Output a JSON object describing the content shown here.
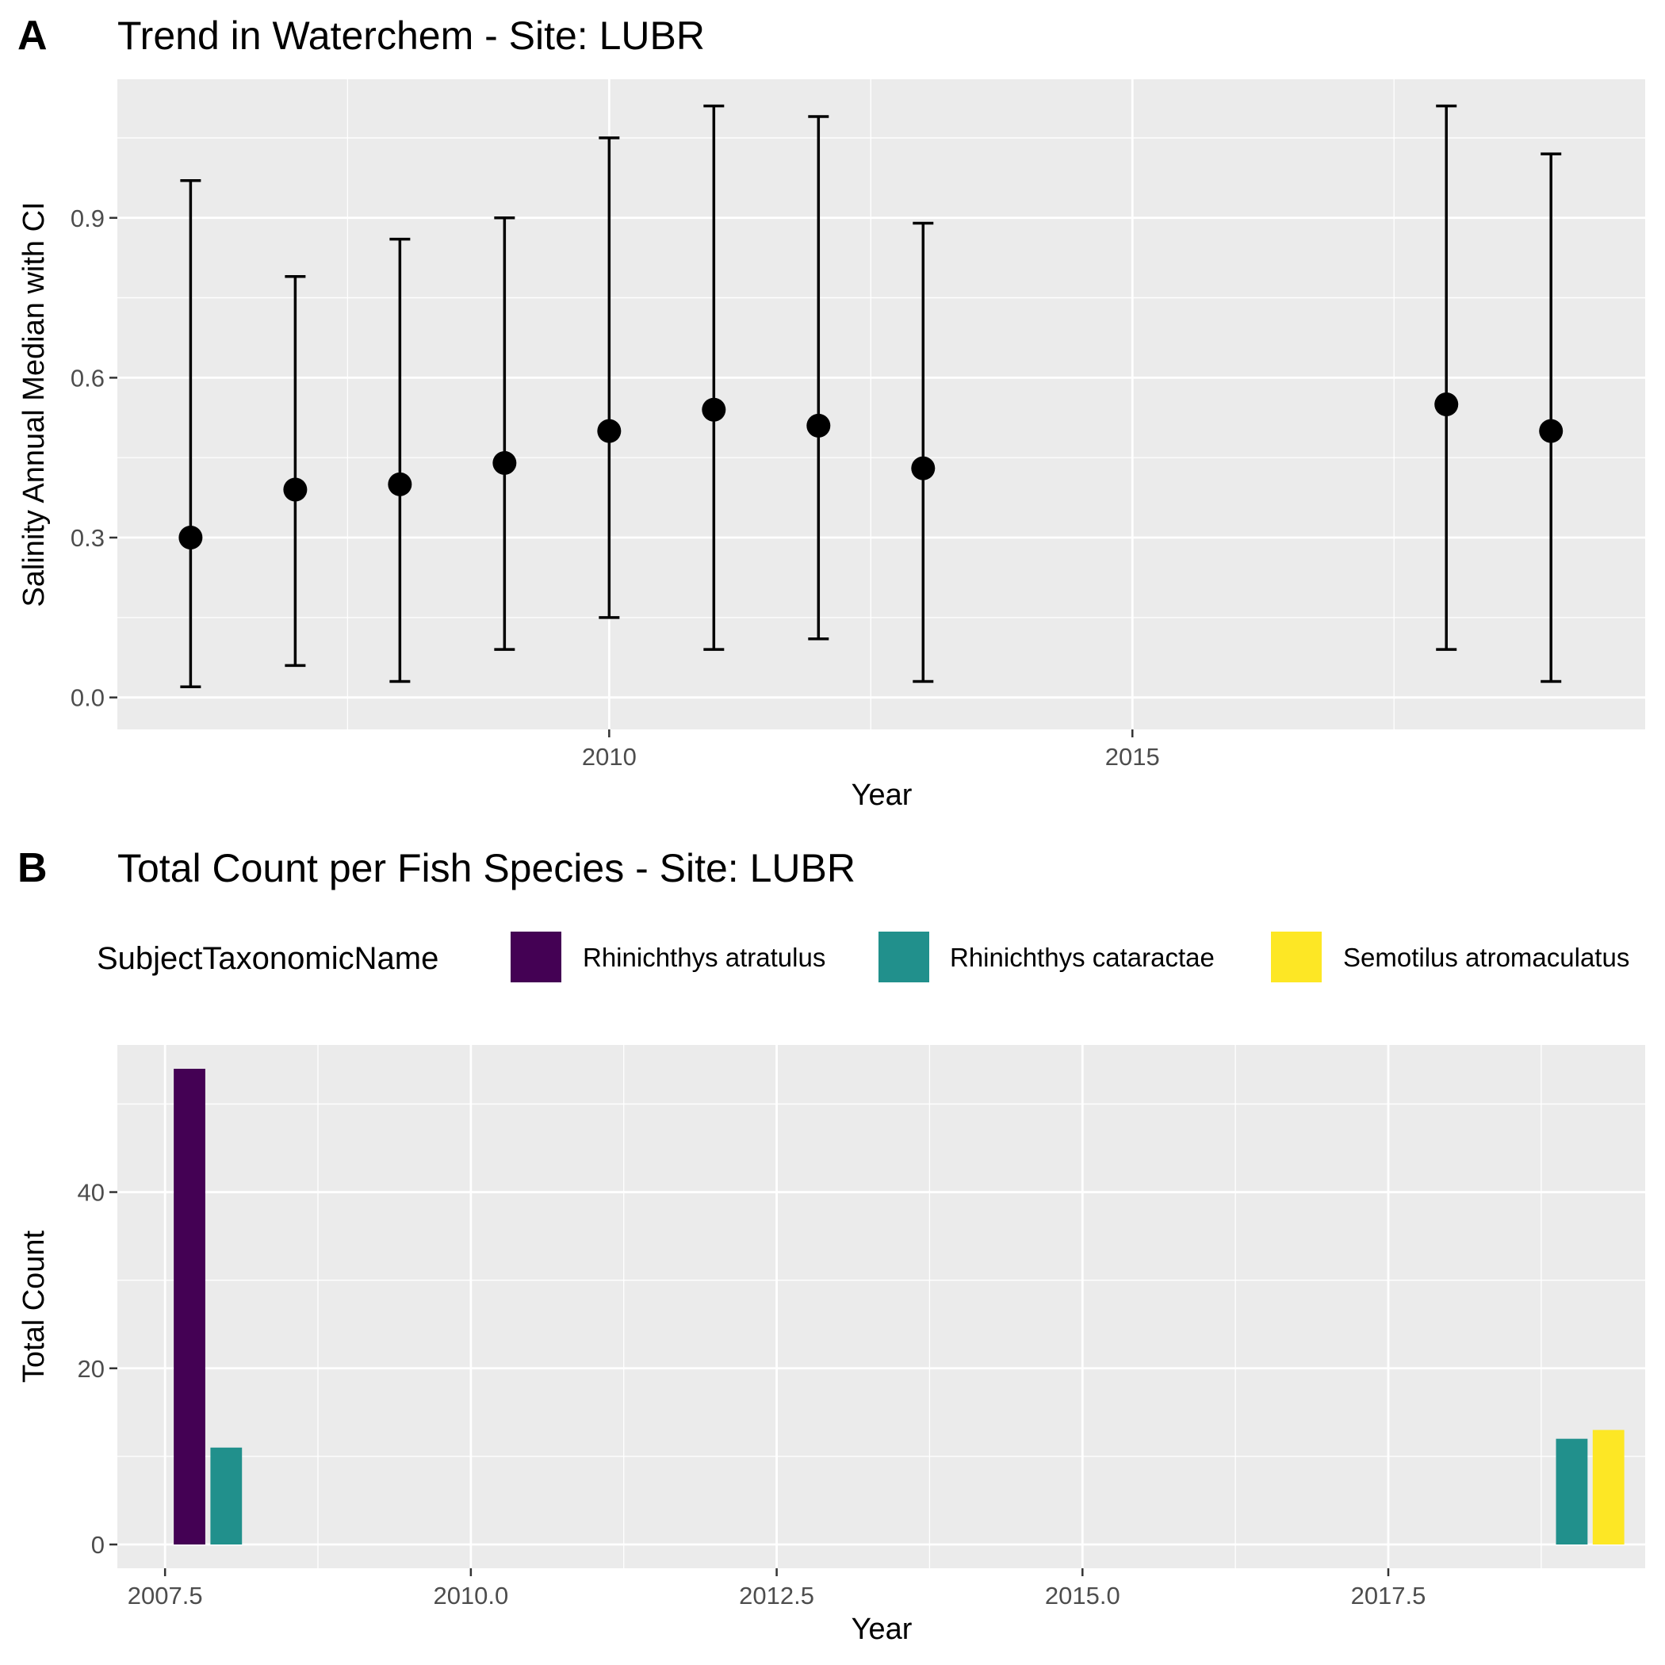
{
  "chart_data": [
    {
      "tag": "A",
      "type": "scatter",
      "title": "Trend in Waterchem - Site: LUBR",
      "xlabel": "Year",
      "ylabel": "Salinity Annual Median with CI",
      "xlim": [
        2005.3,
        2019.9
      ],
      "ylim": [
        -0.06,
        1.16
      ],
      "xticks": [
        2010,
        2015
      ],
      "xticks_minor": [
        2007.5,
        2012.5,
        2017.5
      ],
      "yticks": [
        0.0,
        0.3,
        0.6,
        0.9
      ],
      "ytick_labels": [
        "0.0",
        "0.3",
        "0.6",
        "0.9"
      ],
      "yticks_minor": [
        0.15,
        0.45,
        0.75,
        1.05
      ],
      "grid": true,
      "error_bars": true,
      "points": [
        {
          "x": 2006,
          "y": 0.3,
          "lower": 0.02,
          "upper": 0.97
        },
        {
          "x": 2007,
          "y": 0.39,
          "lower": 0.06,
          "upper": 0.79
        },
        {
          "x": 2008,
          "y": 0.4,
          "lower": 0.03,
          "upper": 0.86
        },
        {
          "x": 2009,
          "y": 0.44,
          "lower": 0.09,
          "upper": 0.9
        },
        {
          "x": 2010,
          "y": 0.5,
          "lower": 0.15,
          "upper": 1.05
        },
        {
          "x": 2011,
          "y": 0.54,
          "lower": 0.09,
          "upper": 1.11
        },
        {
          "x": 2012,
          "y": 0.51,
          "lower": 0.11,
          "upper": 1.09
        },
        {
          "x": 2013,
          "y": 0.43,
          "lower": 0.03,
          "upper": 0.89
        },
        {
          "x": 2018,
          "y": 0.55,
          "lower": 0.09,
          "upper": 1.11
        },
        {
          "x": 2019,
          "y": 0.5,
          "lower": 0.03,
          "upper": 1.02
        }
      ]
    },
    {
      "tag": "B",
      "type": "bar",
      "title": "Total Count per Fish Species - Site: LUBR",
      "xlabel": "Year",
      "ylabel": "Total Count",
      "legend_title": "SubjectTaxonomicName",
      "legend_position": "top",
      "xlim": [
        2007.11,
        2019.6
      ],
      "ylim": [
        -2.7,
        56.7
      ],
      "xticks": [
        2007.5,
        2010.0,
        2012.5,
        2015.0,
        2017.5
      ],
      "xtick_labels": [
        "2007.5",
        "2010.0",
        "2012.5",
        "2015.0",
        "2017.5"
      ],
      "xticks_minor": [
        2008.75,
        2011.25,
        2013.75,
        2016.25,
        2018.75
      ],
      "yticks": [
        0,
        20,
        40
      ],
      "ytick_labels": [
        "0",
        "20",
        "40"
      ],
      "yticks_minor": [
        10,
        30,
        50
      ],
      "grid": true,
      "categories": [
        2008,
        2019
      ],
      "series": [
        {
          "name": "Rhinichthys atratulus",
          "color": "#440154",
          "values": [
            54,
            0
          ]
        },
        {
          "name": "Rhinichthys cataractae",
          "color": "#21908C",
          "values": [
            11,
            12
          ]
        },
        {
          "name": "Semotilus atromaculatus",
          "color": "#FDE725",
          "values": [
            0,
            13
          ]
        }
      ]
    }
  ],
  "colors": {
    "panel_background": "#EBEBEB",
    "grid_major": "#FFFFFF",
    "tick_text": "#4D4D4D",
    "point": "#000000"
  }
}
